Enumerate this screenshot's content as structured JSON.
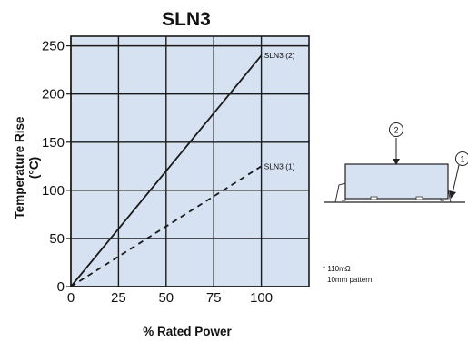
{
  "chart_data": {
    "type": "line",
    "title": "SLN3",
    "xlabel": "% Rated Power",
    "ylabel_line1": "Temperature Rise",
    "ylabel_line2": "(°C)",
    "xlim": [
      0,
      125
    ],
    "ylim": [
      0,
      260
    ],
    "x_ticks": [
      0,
      25,
      50,
      75,
      100
    ],
    "y_ticks": [
      0,
      50,
      100,
      150,
      200,
      250
    ],
    "grid": true,
    "plot_background": "#d6e1f1",
    "series": [
      {
        "name": "SLN3 (2)",
        "style": "solid",
        "color": "#1a1a1a",
        "x": [
          0,
          100
        ],
        "y": [
          0,
          240
        ]
      },
      {
        "name": "SLN3 (1)",
        "style": "dashed",
        "color": "#1a1a1a",
        "x": [
          0,
          100
        ],
        "y": [
          0,
          125
        ]
      }
    ],
    "annotations": {
      "note_line1": "* 110mΩ",
      "note_line2": "10mm pattern"
    },
    "diagram": {
      "callout_top": "2",
      "callout_side": "1",
      "body_color": "#d6e1f1"
    }
  }
}
